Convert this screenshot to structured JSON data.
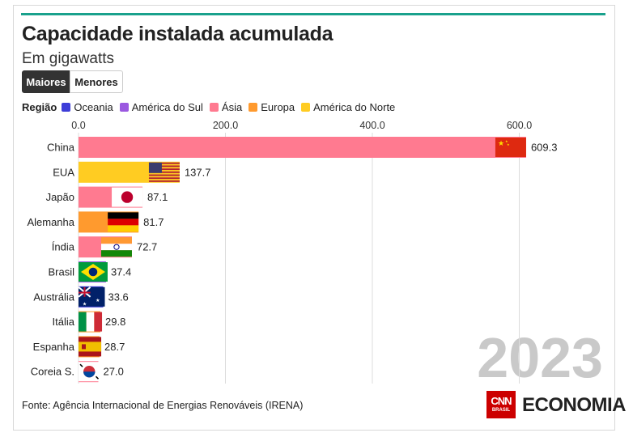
{
  "header": {
    "title": "Capacidade instalada acumulada",
    "subtitle": "Em gigawatts"
  },
  "toggle": {
    "active_label": "Maiores",
    "inactive_label": "Menores"
  },
  "legend": {
    "title": "Região",
    "items": [
      {
        "label": "Oceania",
        "color": "#3d3dd8"
      },
      {
        "label": "América do Sul",
        "color": "#9b59e0"
      },
      {
        "label": "Ásia",
        "color": "#ff7a90"
      },
      {
        "label": "Europa",
        "color": "#ff9a2e"
      },
      {
        "label": "América do Norte",
        "color": "#ffcc22"
      }
    ]
  },
  "year_watermark": "2023",
  "footer": {
    "source": "Fonte: Agência Internacional de Energias Renováveis (IRENA)",
    "brand_cnn": "CNN",
    "brand_cnn_sub": "BRASIL",
    "brand_economia": "ECONOMIA"
  },
  "chart_data": {
    "type": "bar",
    "orientation": "horizontal",
    "xlim": [
      0,
      650
    ],
    "x_ticks": [
      "0.0",
      "200.0",
      "400.0",
      "600.0"
    ],
    "x_tick_values": [
      0,
      200,
      400,
      600
    ],
    "grid": true,
    "categories": [
      "China",
      "EUA",
      "Japão",
      "Alemanha",
      "Índia",
      "Brasil",
      "Austrália",
      "Itália",
      "Espanha",
      "Coreia S."
    ],
    "values": [
      609.3,
      137.7,
      87.1,
      81.7,
      72.7,
      37.4,
      33.6,
      29.8,
      28.7,
      27.0
    ],
    "value_labels": [
      "609.3",
      "137.7",
      "87.1",
      "81.7",
      "72.7",
      "37.4",
      "33.6",
      "29.8",
      "28.7",
      "27.0"
    ],
    "regions": [
      "Ásia",
      "América do Norte",
      "Ásia",
      "Europa",
      "Ásia",
      "América do Sul",
      "Oceania",
      "Europa",
      "Europa",
      "Ásia"
    ],
    "flags": [
      "china-flag-icon",
      "usa-flag-icon",
      "japan-flag-icon",
      "germany-flag-icon",
      "india-flag-icon",
      "brazil-flag-icon",
      "australia-flag-icon",
      "italy-flag-icon",
      "spain-flag-icon",
      "south-korea-flag-icon"
    ]
  }
}
